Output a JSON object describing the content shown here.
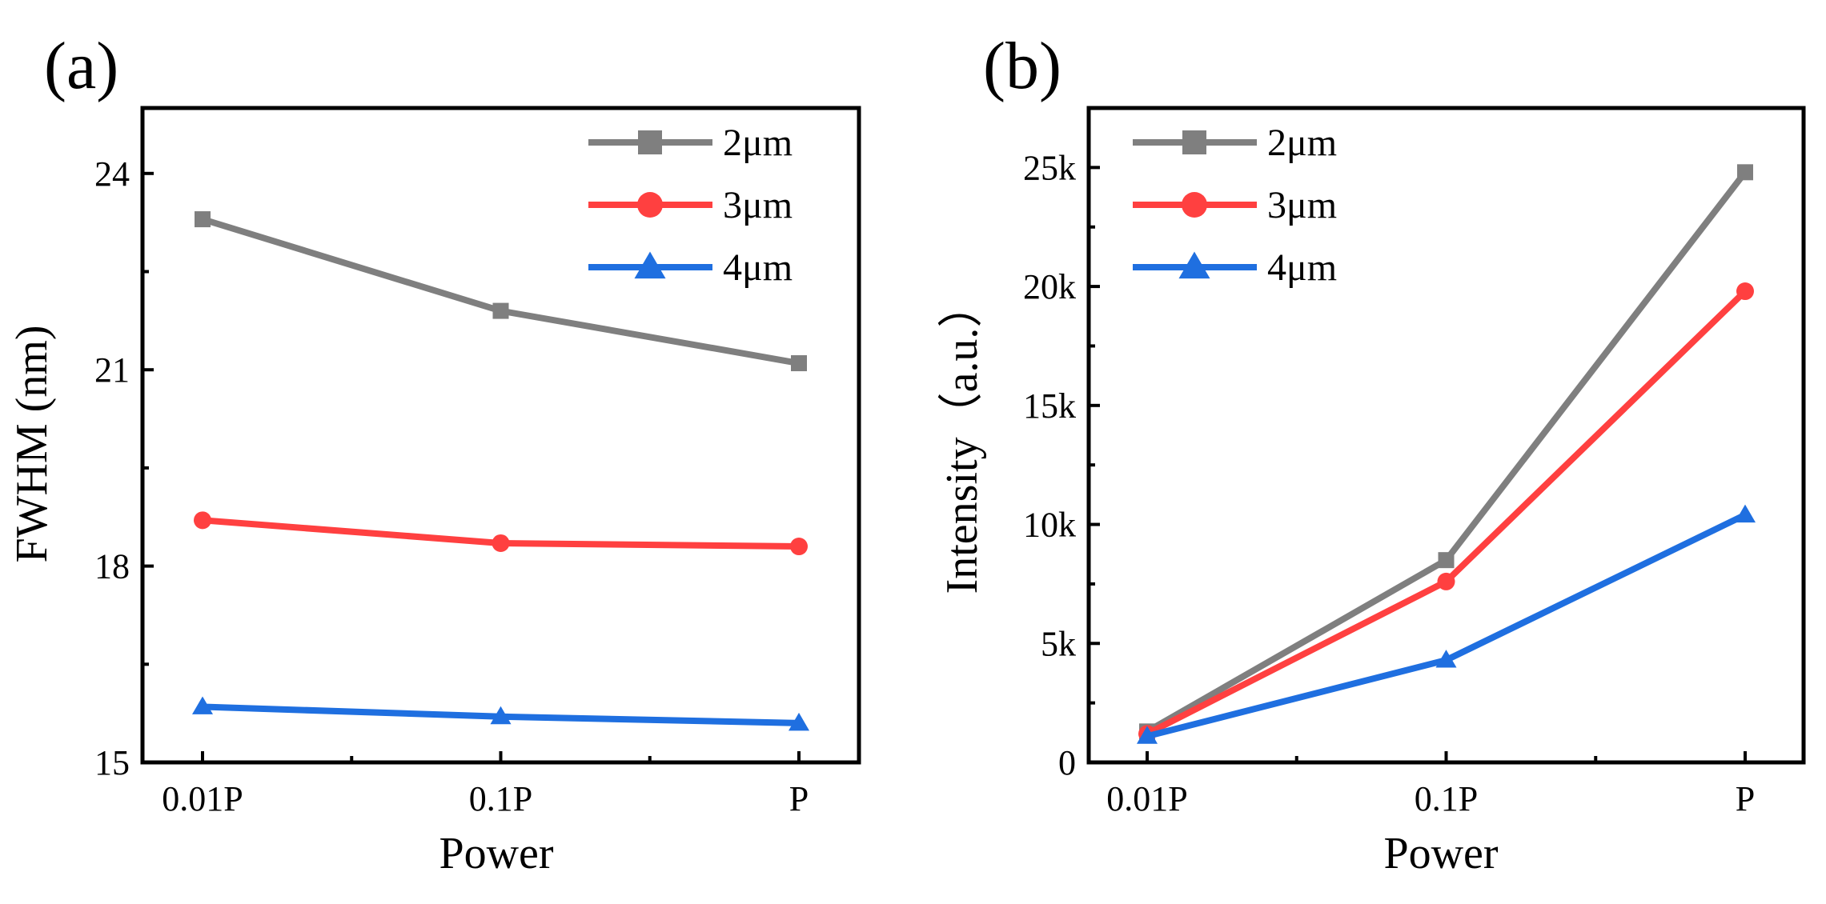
{
  "chart_data": [
    {
      "panel_label": "(a)",
      "type": "line",
      "categories": [
        "0.01P",
        "0.1P",
        "P"
      ],
      "xlabel": "Power",
      "ylabel": "FWHM (nm)",
      "ylim": [
        15,
        25
      ],
      "yticks": [
        15,
        18,
        21,
        24
      ],
      "ytick_labels": [
        "15",
        "18",
        "21",
        "24"
      ],
      "legend_position": "top-right",
      "series": [
        {
          "name": "2μm",
          "values": [
            23.3,
            21.9,
            21.1
          ],
          "color": "#7f7f7f",
          "marker": "square"
        },
        {
          "name": "3μm",
          "values": [
            18.7,
            18.35,
            18.3
          ],
          "color": "#ff4040",
          "marker": "circle"
        },
        {
          "name": "4μm",
          "values": [
            15.85,
            15.7,
            15.6
          ],
          "color": "#1f6fe0",
          "marker": "triangle"
        }
      ]
    },
    {
      "panel_label": "(b)",
      "type": "line",
      "categories": [
        "0.01P",
        "0.1P",
        "P"
      ],
      "xlabel": "Power",
      "ylabel": "Intensity（a.u.）",
      "ylim": [
        0,
        27500
      ],
      "yticks": [
        0,
        5000,
        10000,
        15000,
        20000,
        25000
      ],
      "ytick_labels": [
        "0",
        "5k",
        "10k",
        "15k",
        "20k",
        "25k"
      ],
      "legend_position": "top-left",
      "series": [
        {
          "name": "2μm",
          "values": [
            1300,
            8500,
            24800
          ],
          "color": "#7f7f7f",
          "marker": "square"
        },
        {
          "name": "3μm",
          "values": [
            1200,
            7600,
            19800
          ],
          "color": "#ff4040",
          "marker": "circle"
        },
        {
          "name": "4μm",
          "values": [
            1100,
            4300,
            10400
          ],
          "color": "#1f6fe0",
          "marker": "triangle"
        }
      ]
    }
  ]
}
